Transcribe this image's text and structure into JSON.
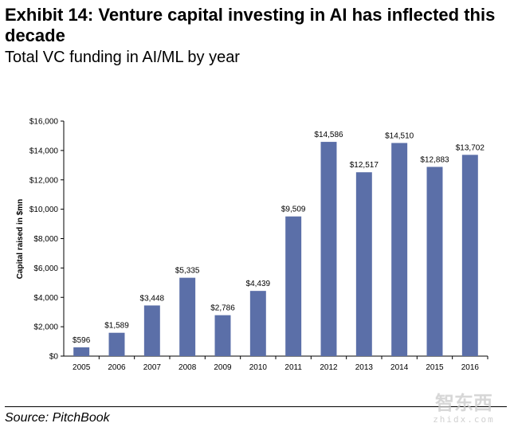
{
  "header": {
    "title": "Exhibit 14: Venture capital investing in AI has inflected this decade",
    "subtitle": "Total VC funding in AI/ML by year"
  },
  "footer": {
    "source": "Source: PitchBook"
  },
  "watermark": {
    "logo_text": "智东西",
    "site": "zhidx.com"
  },
  "colors": {
    "bar": "#5b6fa8",
    "axis": "#000000",
    "text": "#000000"
  },
  "chart_data": {
    "type": "bar",
    "title": "",
    "xlabel": "",
    "ylabel": "Capital raised in $mn",
    "categories": [
      "2005",
      "2006",
      "2007",
      "2008",
      "2009",
      "2010",
      "2011",
      "2012",
      "2013",
      "2014",
      "2015",
      "2016"
    ],
    "values": [
      596,
      1589,
      3448,
      5335,
      2786,
      4439,
      9509,
      14586,
      12517,
      14510,
      12883,
      13702
    ],
    "data_labels": [
      "$596",
      "$1,589",
      "$3,448",
      "$5,335",
      "$2,786",
      "$4,439",
      "$9,509",
      "$14,586",
      "$12,517",
      "$14,510",
      "$12,883",
      "$13,702"
    ],
    "ylim": [
      0,
      16000
    ],
    "yticks": [
      0,
      2000,
      4000,
      6000,
      8000,
      10000,
      12000,
      14000,
      16000
    ],
    "ytick_labels": [
      "$0",
      "$2,000",
      "$4,000",
      "$6,000",
      "$8,000",
      "$10,000",
      "$12,000",
      "$14,000",
      "$16,000"
    ],
    "grid": false,
    "legend": "none"
  }
}
